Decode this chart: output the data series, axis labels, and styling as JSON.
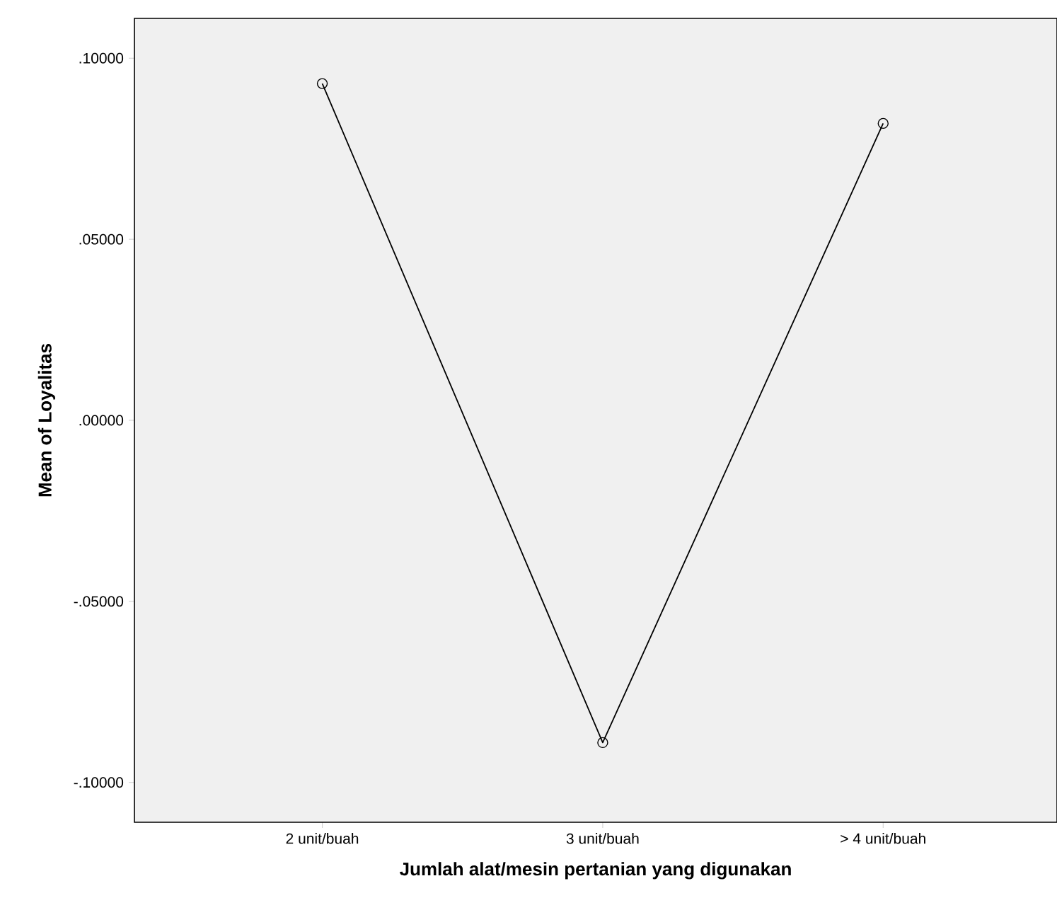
{
  "chart_data": {
    "type": "line",
    "xlabel": "Jumlah alat/mesin pertanian yang digunakan",
    "ylabel": "Mean of Loyalitas",
    "categories": [
      "2 unit/buah",
      "3 unit/buah",
      "> 4 unit/buah"
    ],
    "values": [
      0.093,
      -0.089,
      0.082
    ],
    "color": "#000000",
    "marker": "circle",
    "line_style": "solid",
    "ylim": [
      -0.111,
      0.111
    ],
    "yticks": [
      {
        "value": -0.1,
        "label": "-.10000"
      },
      {
        "value": -0.05,
        "label": "-.05000"
      },
      {
        "value": 0,
        "label": ".00000"
      },
      {
        "value": 0.05,
        "label": ".05000"
      },
      {
        "value": 0.1,
        "label": ".10000"
      }
    ],
    "grid": false
  }
}
